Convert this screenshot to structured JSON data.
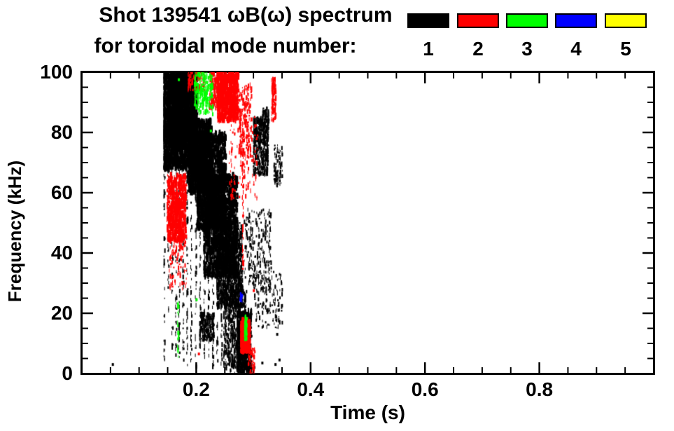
{
  "header": {
    "title_line1": "Shot 139541 ωB(ω) spectrum",
    "title_line2": "for toroidal mode number:"
  },
  "legend": {
    "modes": [
      {
        "label": "1",
        "color": "#000000"
      },
      {
        "label": "2",
        "color": "#ff0000"
      },
      {
        "label": "3",
        "color": "#00ff00"
      },
      {
        "label": "4",
        "color": "#0000ff"
      },
      {
        "label": "5",
        "color": "#ffff00"
      }
    ]
  },
  "chart_data": {
    "type": "scatter",
    "title": "Shot 139541 ωB(ω) spectrum for toroidal mode number: 1 2 3 4 5",
    "xlabel": "Time (s)",
    "ylabel": "Frequency (kHz)",
    "xlim": [
      0,
      1.0
    ],
    "ylim": [
      0,
      100
    ],
    "grid": false,
    "legend_position": "top-right",
    "x_major_ticks": [
      0.2,
      0.4,
      0.6,
      0.8
    ],
    "x_tick_labels": [
      "0.2",
      "0.4",
      "0.6",
      "0.8"
    ],
    "x_minor_step": 0.05,
    "y_major_ticks": [
      0,
      20,
      40,
      60,
      80,
      100
    ],
    "y_tick_labels": [
      "0",
      "20",
      "40",
      "60",
      "80",
      "100"
    ],
    "y_minor_step": 5,
    "mode_colors": {
      "1": "#000000",
      "2": "#ff0000",
      "3": "#00ff00",
      "4": "#0000ff",
      "5": "#ffff00"
    },
    "description": "Magnetic spectrogram: scattered mode activity. Black n=1 band chirps down from ~95 kHz at t=0.15 s to 0 kHz at t=0.29 s; red n=2 at 44-66 kHz (t=0.15-0.18), 84-100 kHz (t=0.24-0.27), 7-18 kHz (t=0.28); green n=3 specks at 86-100 kHz (t=0.20-0.23); trace blue n=4 at 25 kHz (t=0.28). No activity for t>0.37 s.",
    "features": [
      {
        "mode": 1,
        "style": "cloud",
        "t": [
          0.142,
          0.2
        ],
        "f": [
          68,
          100
        ],
        "n": 2600,
        "mw": 3,
        "mh": 9
      },
      {
        "mode": 1,
        "style": "cloud",
        "t": [
          0.15,
          0.185
        ],
        "f": [
          76,
          99
        ],
        "n": 900,
        "mw": 3,
        "mh": 9
      },
      {
        "mode": 1,
        "style": "cloud",
        "t": [
          0.185,
          0.225
        ],
        "f": [
          60,
          84
        ],
        "n": 1400,
        "mw": 3,
        "mh": 8
      },
      {
        "mode": 1,
        "style": "cloud",
        "t": [
          0.2,
          0.25
        ],
        "f": [
          48,
          80
        ],
        "n": 1700,
        "mw": 3,
        "mh": 8
      },
      {
        "mode": 1,
        "style": "cloud",
        "t": [
          0.212,
          0.27
        ],
        "f": [
          32,
          66
        ],
        "n": 1800,
        "mw": 3,
        "mh": 8
      },
      {
        "mode": 1,
        "style": "cloud",
        "t": [
          0.235,
          0.28
        ],
        "f": [
          22,
          50
        ],
        "n": 1100,
        "mw": 2,
        "mh": 7
      },
      {
        "mode": 1,
        "style": "cloud",
        "t": [
          0.247,
          0.287
        ],
        "f": [
          2,
          28
        ],
        "n": 500,
        "mw": 2,
        "mh": 6
      },
      {
        "mode": 1,
        "style": "cloud",
        "t": [
          0.27,
          0.295
        ],
        "f": [
          0,
          21
        ],
        "n": 650,
        "mw": 3,
        "mh": 7
      },
      {
        "mode": 1,
        "style": "cloud",
        "t": [
          0.205,
          0.23
        ],
        "f": [
          11,
          20
        ],
        "n": 240,
        "mw": 2,
        "mh": 5
      },
      {
        "mode": 1,
        "style": "cloud",
        "t": [
          0.283,
          0.33
        ],
        "f": [
          28,
          55
        ],
        "n": 230,
        "mw": 2,
        "mh": 5
      },
      {
        "mode": 1,
        "style": "cloud",
        "t": [
          0.3,
          0.35
        ],
        "f": [
          15,
          34
        ],
        "n": 140,
        "mw": 2,
        "mh": 5
      },
      {
        "mode": 1,
        "style": "cloud",
        "t": [
          0.299,
          0.325
        ],
        "f": [
          66,
          85
        ],
        "n": 480,
        "mw": 2,
        "mh": 6
      },
      {
        "mode": 1,
        "style": "cloud",
        "t": [
          0.335,
          0.35
        ],
        "f": [
          62,
          76
        ],
        "n": 90,
        "mw": 2,
        "mh": 5
      },
      {
        "mode": 1,
        "style": "cloud",
        "t": [
          0.315,
          0.326
        ],
        "f": [
          78,
          88
        ],
        "n": 70,
        "mw": 2,
        "mh": 5
      },
      {
        "mode": 1,
        "style": "vline",
        "t": 0.144,
        "f": [
          2,
          98
        ],
        "n": 55
      },
      {
        "mode": 1,
        "style": "vline",
        "t": 0.151,
        "f": [
          20,
          99
        ],
        "n": 55
      },
      {
        "mode": 1,
        "style": "vline",
        "t": 0.158,
        "f": [
          4,
          92
        ],
        "n": 55
      },
      {
        "mode": 1,
        "style": "vline",
        "t": 0.1645,
        "f": [
          6,
          88
        ],
        "n": 55
      },
      {
        "mode": 1,
        "style": "vline",
        "t": 0.17,
        "f": [
          5,
          70
        ],
        "n": 50
      },
      {
        "mode": 1,
        "style": "vline",
        "t": 0.177,
        "f": [
          3,
          80
        ],
        "n": 55
      },
      {
        "mode": 1,
        "style": "vline",
        "t": 0.184,
        "f": [
          2,
          75
        ],
        "n": 55
      },
      {
        "mode": 1,
        "style": "vline",
        "t": 0.191,
        "f": [
          4,
          86
        ],
        "n": 55
      },
      {
        "mode": 1,
        "style": "vline",
        "t": 0.199,
        "f": [
          2,
          90
        ],
        "n": 55
      },
      {
        "mode": 1,
        "style": "vline",
        "t": 0.2065,
        "f": [
          6,
          82
        ],
        "n": 50
      },
      {
        "mode": 1,
        "style": "vline",
        "t": 0.214,
        "f": [
          3,
          76
        ],
        "n": 50
      },
      {
        "mode": 1,
        "style": "vline",
        "t": 0.2215,
        "f": [
          5,
          70
        ],
        "n": 50
      },
      {
        "mode": 1,
        "style": "vline",
        "t": 0.229,
        "f": [
          2,
          66
        ],
        "n": 50
      },
      {
        "mode": 1,
        "style": "vline",
        "t": 0.2365,
        "f": [
          4,
          62
        ],
        "n": 45
      },
      {
        "mode": 1,
        "style": "vline",
        "t": 0.244,
        "f": [
          2,
          58
        ],
        "n": 45
      },
      {
        "mode": 1,
        "style": "vline",
        "t": 0.2515,
        "f": [
          1,
          55
        ],
        "n": 45
      },
      {
        "mode": 1,
        "style": "vline",
        "t": 0.259,
        "f": [
          0,
          52
        ],
        "n": 45
      },
      {
        "mode": 1,
        "style": "vline",
        "t": 0.2665,
        "f": [
          0,
          48
        ],
        "n": 45
      },
      {
        "mode": 1,
        "style": "vline",
        "t": 0.274,
        "f": [
          0,
          44
        ],
        "n": 45
      },
      {
        "mode": 2,
        "style": "cloud",
        "t": [
          0.148,
          0.181
        ],
        "f": [
          44,
          66
        ],
        "n": 700,
        "mw": 3,
        "mh": 7
      },
      {
        "mode": 2,
        "style": "cloud",
        "t": [
          0.152,
          0.182
        ],
        "f": [
          28,
          45
        ],
        "n": 90,
        "mw": 2,
        "mh": 5
      },
      {
        "mode": 2,
        "style": "cloud",
        "t": [
          0.236,
          0.272
        ],
        "f": [
          84,
          100
        ],
        "n": 800,
        "mw": 3,
        "mh": 8
      },
      {
        "mode": 2,
        "style": "cloud",
        "t": [
          0.222,
          0.24
        ],
        "f": [
          88,
          100
        ],
        "n": 160,
        "mw": 2,
        "mh": 6
      },
      {
        "mode": 2,
        "style": "cloud",
        "t": [
          0.185,
          0.214
        ],
        "f": [
          94,
          100
        ],
        "n": 90,
        "mw": 2,
        "mh": 5
      },
      {
        "mode": 2,
        "style": "cloud",
        "t": [
          0.274,
          0.296
        ],
        "f": [
          72,
          96
        ],
        "n": 160,
        "mw": 2,
        "mh": 6
      },
      {
        "mode": 2,
        "style": "cloud",
        "t": [
          0.255,
          0.307
        ],
        "f": [
          58,
          86
        ],
        "n": 140,
        "mw": 2,
        "mh": 5
      },
      {
        "mode": 2,
        "style": "vline",
        "t": 0.2815,
        "f": [
          34,
          78
        ],
        "n": 48
      },
      {
        "mode": 2,
        "style": "cloud",
        "t": [
          0.331,
          0.338
        ],
        "f": [
          84,
          98
        ],
        "n": 110,
        "mw": 2,
        "mh": 6
      },
      {
        "mode": 2,
        "style": "cloud",
        "t": [
          0.2765,
          0.2925
        ],
        "f": [
          7,
          18
        ],
        "n": 380,
        "mw": 3,
        "mh": 6
      },
      {
        "mode": 2,
        "style": "cloud",
        "t": [
          0.29,
          0.302
        ],
        "f": [
          0,
          9
        ],
        "n": 50,
        "mw": 2,
        "mh": 5
      },
      {
        "mode": 3,
        "style": "cloud",
        "t": [
          0.196,
          0.228
        ],
        "f": [
          86,
          100
        ],
        "n": 230,
        "mw": 2,
        "mh": 6
      },
      {
        "mode": 3,
        "style": "vline",
        "t": 0.168,
        "f": [
          5,
          24
        ],
        "n": 26
      },
      {
        "mode": 3,
        "style": "cloud",
        "t": [
          0.2835,
          0.2875
        ],
        "f": [
          11,
          19
        ],
        "n": 70,
        "mw": 2,
        "mh": 5
      },
      {
        "mode": 4,
        "style": "cloud",
        "t": [
          0.2757,
          0.2795
        ],
        "f": [
          24,
          27
        ],
        "n": 12,
        "mw": 2,
        "mh": 4
      }
    ],
    "points": [
      {
        "mode": 1,
        "t": 0.0535,
        "f": 3
      },
      {
        "mode": 1,
        "t": 0.301,
        "f": 2
      },
      {
        "mode": 1,
        "t": 0.315,
        "f": 3.5
      },
      {
        "mode": 1,
        "t": 0.338,
        "f": 3
      },
      {
        "mode": 1,
        "t": 0.345,
        "f": 4.5
      },
      {
        "mode": 1,
        "t": 0.341,
        "f": 13
      },
      {
        "mode": 2,
        "t": 0.204,
        "f": 6.5
      },
      {
        "mode": 2,
        "t": 0.3,
        "f": 27.5
      },
      {
        "mode": 3,
        "t": 0.2,
        "f": 24.5
      },
      {
        "mode": 3,
        "t": 0.169,
        "f": 97.5
      },
      {
        "mode": 3,
        "t": 0.225,
        "f": 80.5
      }
    ]
  }
}
